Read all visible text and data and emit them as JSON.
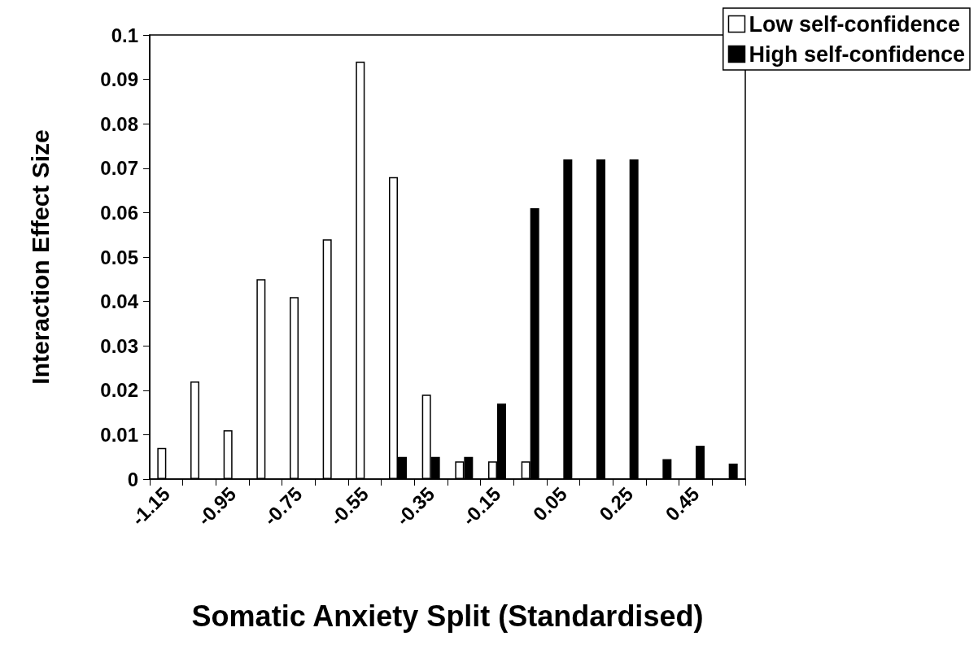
{
  "chart_data": {
    "type": "bar",
    "xlabel": "Somatic Anxiety Split (Standardised)",
    "ylabel": "Interaction Effect Size",
    "categories": [
      "-1.15",
      null,
      "-0.95",
      null,
      "-0.75",
      null,
      "-0.55",
      null,
      "-0.35",
      null,
      "-0.15",
      null,
      "0.05",
      null,
      "0.25",
      null,
      "0.45",
      null
    ],
    "series": [
      {
        "name": "Low self-confidence",
        "color": "#ffffff",
        "values": [
          0.007,
          0.022,
          0.011,
          0.045,
          0.041,
          0.054,
          0.094,
          0.068,
          0.019,
          0.004,
          0.004,
          0.004,
          null,
          null,
          null,
          null,
          null,
          null
        ]
      },
      {
        "name": "High self-confidence",
        "color": "#000000",
        "values": [
          null,
          null,
          null,
          null,
          null,
          null,
          null,
          0.005,
          0.005,
          0.005,
          0.017,
          0.061,
          0.072,
          0.072,
          0.072,
          0.0045,
          0.0075,
          0.0035
        ]
      }
    ],
    "ylim": [
      0,
      0.1
    ],
    "yticks": [
      0,
      0.01,
      0.02,
      0.03,
      0.04,
      0.05,
      0.06,
      0.07,
      0.08,
      0.09,
      0.1
    ],
    "grid": false,
    "legend": "top right"
  }
}
